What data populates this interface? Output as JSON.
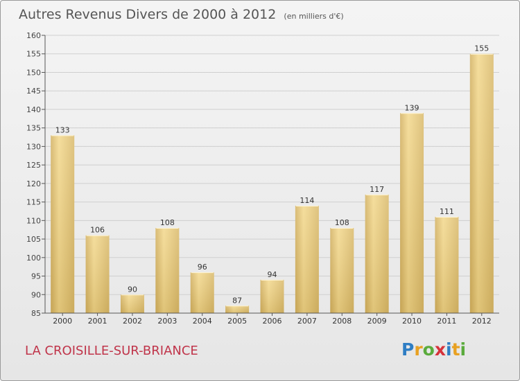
{
  "header": {
    "title": "Autres Revenus Divers de 2000 à 2012",
    "subtitle": "(en milliers d'€)"
  },
  "footer": {
    "commune": "LA CROISILLE-SUR-BRIANCE"
  },
  "logo": {
    "text": "Proxiti",
    "letters": [
      {
        "char": "P",
        "color": "#2f7ec4"
      },
      {
        "char": "r",
        "color": "#e8a122"
      },
      {
        "char": "o",
        "color": "#5aab3c"
      },
      {
        "char": "x",
        "color": "#d6323a"
      },
      {
        "char": "i",
        "color": "#2f7ec4"
      },
      {
        "char": "t",
        "color": "#e8a122"
      },
      {
        "char": "i",
        "color": "#5aab3c"
      }
    ]
  },
  "chart_data": {
    "type": "bar",
    "title": "Autres Revenus Divers de 2000 à 2012",
    "subtitle": "(en milliers d'€)",
    "categories": [
      "2000",
      "2001",
      "2002",
      "2003",
      "2004",
      "2005",
      "2006",
      "2007",
      "2008",
      "2009",
      "2010",
      "2011",
      "2012"
    ],
    "values": [
      133,
      106,
      90,
      108,
      96,
      87,
      94,
      114,
      108,
      117,
      139,
      111,
      155
    ],
    "value_labels": [
      "133",
      "106",
      "90",
      "108",
      "96",
      "87",
      "94",
      "114",
      "108",
      "117",
      "139",
      "111",
      "155"
    ],
    "ylim": [
      85,
      160
    ],
    "yticks": [
      "85",
      "90",
      "95",
      "100",
      "105",
      "110",
      "115",
      "120",
      "125",
      "130",
      "135",
      "140",
      "145",
      "150",
      "155",
      "160"
    ],
    "grid": true,
    "bar_color": "#e6c777"
  }
}
